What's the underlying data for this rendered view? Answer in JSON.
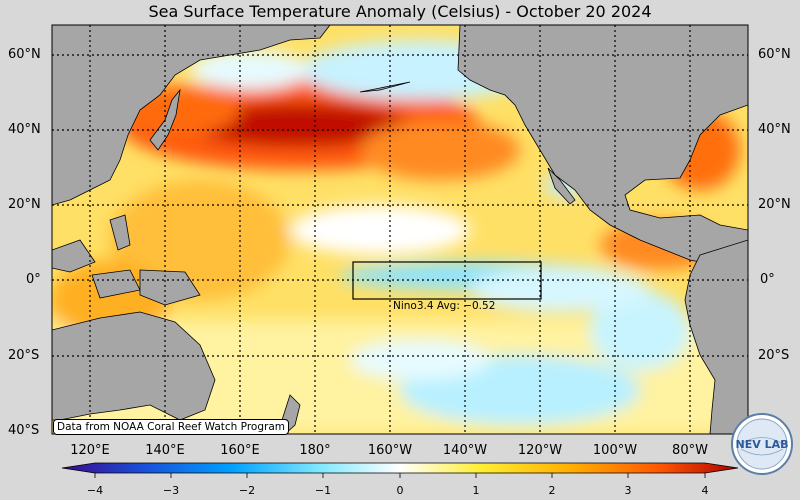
{
  "title": "Sea Surface Temperature Anomaly (Celsius) - October 20 2024",
  "lat_labels": [
    "60°N",
    "40°N",
    "20°N",
    "0°",
    "20°S",
    "40°S"
  ],
  "lon_labels": [
    "120°E",
    "140°E",
    "160°E",
    "180°",
    "160°W",
    "140°W",
    "120°W",
    "100°W",
    "80°W"
  ],
  "colorbar": {
    "ticks": [
      "−4",
      "−3",
      "−2",
      "−1",
      "0",
      "1",
      "2",
      "3",
      "4"
    ],
    "colors": [
      "#3a0a8c",
      "#1a4fd8",
      "#00a0ff",
      "#7fe8ff",
      "#ffffff",
      "#ffee33",
      "#ffb000",
      "#ff5a00",
      "#b00000"
    ]
  },
  "nino_label": "Nino3.4 Avg: −0.52",
  "credit": "Data from NOAA Coral Reef Watch Program",
  "logo_text": "NEV LAB",
  "colors": {
    "land": "#a6a6a6",
    "background": "#d8d8d8"
  }
}
